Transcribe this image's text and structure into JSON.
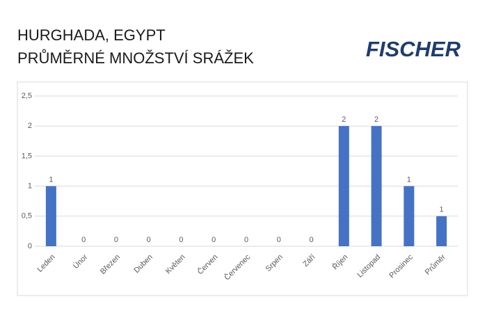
{
  "logo": "FISCHER",
  "chart_data": {
    "type": "bar",
    "title": "HURGHADA, EGYPT",
    "subtitle": "PRŮMĚRNÉ MNOŽSTVÍ SRÁŽEK",
    "categories": [
      "Leden",
      "Únor",
      "Březen",
      "Duben",
      "Květen",
      "Červen",
      "Červenec",
      "Srpen",
      "Září",
      "Říjen",
      "Listopad",
      "Prosinec",
      "Průměr"
    ],
    "values": [
      1,
      0,
      0,
      0,
      0,
      0,
      0,
      0,
      0,
      2,
      2,
      1,
      0.5
    ],
    "value_labels": [
      "1",
      "0",
      "0",
      "0",
      "0",
      "0",
      "0",
      "0",
      "0",
      "2",
      "2",
      "1",
      "1"
    ],
    "color": "#4472c4",
    "ylim": [
      0,
      2.5
    ],
    "yticks": [
      0,
      {
        "value": 0.5,
        "label": "0,5"
      },
      1,
      {
        "value": 1.5,
        "label": "1,5"
      },
      2,
      {
        "value": 2.5,
        "label": "2,5"
      }
    ],
    "grid": true
  }
}
